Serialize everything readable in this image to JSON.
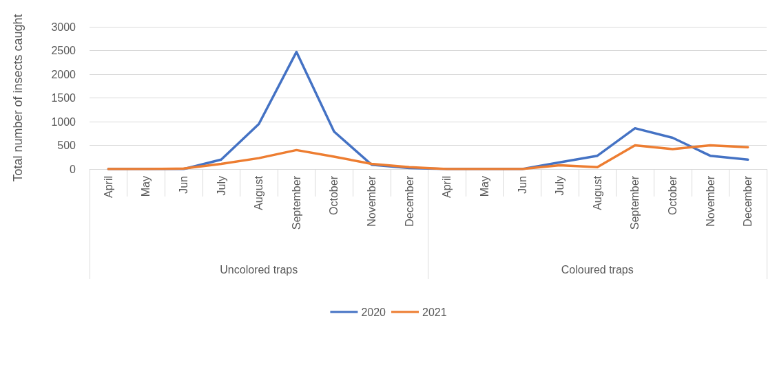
{
  "chart_data": {
    "type": "line",
    "ylabel": "Total number of insects caught",
    "categories": [
      "April",
      "May",
      "Jun",
      "July",
      "August",
      "September",
      "October",
      "November",
      "December",
      "April",
      "May",
      "Jun",
      "July",
      "August",
      "September",
      "October",
      "November",
      "December"
    ],
    "series": [
      {
        "name": "2020",
        "color": "#4472c4",
        "values": [
          0,
          0,
          0,
          200,
          950,
          2470,
          790,
          90,
          20,
          0,
          0,
          0,
          140,
          280,
          860,
          660,
          280,
          200
        ]
      },
      {
        "name": "2021",
        "color": "#ed7d31",
        "values": [
          0,
          0,
          10,
          110,
          230,
          400,
          260,
          110,
          40,
          0,
          0,
          0,
          80,
          40,
          500,
          420,
          500,
          460
        ]
      }
    ],
    "annotations": [
      "Uncolored traps",
      "Coloured traps"
    ],
    "ylim": [
      0,
      3000
    ],
    "yticks": [
      0,
      500,
      1000,
      1500,
      2000,
      2500,
      3000
    ],
    "grid": "y",
    "legend": "bottom",
    "marker": "none",
    "line_style": "solid"
  }
}
